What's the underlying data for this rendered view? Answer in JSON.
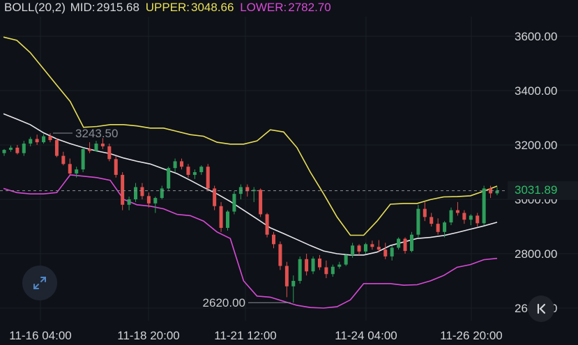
{
  "legend": {
    "name": "BOLL(20,2)",
    "mid_label": "MID:",
    "mid_value": "2915.68",
    "upper_label": "UPPER:",
    "upper_value": "3048.66",
    "lower_label": "LOWER:",
    "lower_value": "2782.70"
  },
  "current_price": "3031.89",
  "colors": {
    "background": "#0e1117",
    "up": "#2e9e5b",
    "down": "#e2514f",
    "upper": "#e9e059",
    "mid": "#e8e8ee",
    "lower": "#d94ad9",
    "price_text": "#2dbd6a"
  },
  "controls": {
    "expand_icon": "expand-arrows-icon",
    "collapse_icon": "chevron-left-bar-icon"
  },
  "chart_data": {
    "type": "candlestick",
    "y_ticks": [
      "3600.00",
      "3400.00",
      "3200.00",
      "3000.00",
      "2800.00",
      "2600.00"
    ],
    "x_ticks": [
      "11-16 04:00",
      "11-18 20:00",
      "11-21 12:00",
      "11-24 04:00",
      "11-26 20:00"
    ],
    "annotations": {
      "high": "3243.50",
      "low": "2620.00"
    },
    "ylim": [
      2580,
      3660
    ],
    "candles": [
      [
        3170,
        3185,
        3160,
        3182
      ],
      [
        3182,
        3198,
        3175,
        3190
      ],
      [
        3190,
        3200,
        3165,
        3170
      ],
      [
        3170,
        3215,
        3160,
        3205
      ],
      [
        3205,
        3230,
        3195,
        3222
      ],
      [
        3222,
        3238,
        3200,
        3210
      ],
      [
        3210,
        3240,
        3205,
        3232
      ],
      [
        3232,
        3243.5,
        3210,
        3218
      ],
      [
        3218,
        3225,
        3155,
        3160
      ],
      [
        3160,
        3175,
        3125,
        3130
      ],
      [
        3130,
        3150,
        3090,
        3095
      ],
      [
        3095,
        3120,
        3080,
        3110
      ],
      [
        3110,
        3190,
        3100,
        3185
      ],
      [
        3185,
        3210,
        3170,
        3178
      ],
      [
        3178,
        3215,
        3175,
        3205
      ],
      [
        3205,
        3225,
        3185,
        3195
      ],
      [
        3195,
        3205,
        3140,
        3148
      ],
      [
        3148,
        3160,
        3080,
        3090
      ],
      [
        3090,
        3100,
        2960,
        2980
      ],
      [
        2980,
        3010,
        2960,
        3000
      ],
      [
        3000,
        3060,
        2990,
        3045
      ],
      [
        3045,
        3060,
        3000,
        3012
      ],
      [
        3012,
        3025,
        2970,
        2985
      ],
      [
        2985,
        3010,
        2950,
        3005
      ],
      [
        3005,
        3050,
        3000,
        3040
      ],
      [
        3040,
        3120,
        3035,
        3115
      ],
      [
        3115,
        3150,
        3100,
        3140
      ],
      [
        3140,
        3150,
        3110,
        3120
      ],
      [
        3120,
        3130,
        3080,
        3090
      ],
      [
        3090,
        3110,
        3075,
        3100
      ],
      [
        3100,
        3125,
        3090,
        3120
      ],
      [
        3120,
        3130,
        3030,
        3040
      ],
      [
        3040,
        3050,
        2960,
        2975
      ],
      [
        2975,
        2990,
        2880,
        2895
      ],
      [
        2895,
        2960,
        2885,
        2955
      ],
      [
        2955,
        3030,
        2945,
        3020
      ],
      [
        3020,
        3055,
        3000,
        3045
      ],
      [
        3045,
        3055,
        3010,
        3030
      ],
      [
        3030,
        3045,
        2990,
        3035
      ],
      [
        3035,
        3040,
        2935,
        2945
      ],
      [
        2945,
        2950,
        2860,
        2870
      ],
      [
        2870,
        2880,
        2820,
        2835
      ],
      [
        2835,
        2845,
        2740,
        2755
      ],
      [
        2755,
        2770,
        2640,
        2680
      ],
      [
        2680,
        2720,
        2620,
        2700
      ],
      [
        2700,
        2790,
        2690,
        2780
      ],
      [
        2780,
        2800,
        2720,
        2735
      ],
      [
        2735,
        2790,
        2725,
        2782
      ],
      [
        2782,
        2795,
        2740,
        2750
      ],
      [
        2750,
        2775,
        2710,
        2725
      ],
      [
        2725,
        2760,
        2715,
        2752
      ],
      [
        2752,
        2770,
        2745,
        2760
      ],
      [
        2760,
        2800,
        2755,
        2795
      ],
      [
        2795,
        2840,
        2785,
        2830
      ],
      [
        2830,
        2835,
        2795,
        2808
      ],
      [
        2808,
        2840,
        2800,
        2835
      ],
      [
        2835,
        2848,
        2815,
        2825
      ],
      [
        2825,
        2850,
        2805,
        2815
      ],
      [
        2815,
        2840,
        2780,
        2790
      ],
      [
        2790,
        2830,
        2775,
        2822
      ],
      [
        2822,
        2860,
        2815,
        2855
      ],
      [
        2855,
        2860,
        2800,
        2810
      ],
      [
        2810,
        2880,
        2805,
        2870
      ],
      [
        2870,
        2980,
        2860,
        2965
      ],
      [
        2965,
        2990,
        2920,
        2935
      ],
      [
        2935,
        2950,
        2900,
        2910
      ],
      [
        2910,
        2930,
        2870,
        2880
      ],
      [
        2880,
        2920,
        2860,
        2915
      ],
      [
        2915,
        2970,
        2905,
        2960
      ],
      [
        2960,
        2990,
        2940,
        2950
      ],
      [
        2950,
        2960,
        2910,
        2925
      ],
      [
        2925,
        2945,
        2905,
        2940
      ],
      [
        2940,
        2950,
        2900,
        2912
      ],
      [
        2912,
        3050,
        2905,
        3040
      ],
      [
        3040,
        3050,
        3005,
        3022
      ],
      [
        3022,
        3045,
        3015,
        3031.89
      ]
    ],
    "upper": [
      3597,
      3585,
      3540,
      3480,
      3420,
      3360,
      3265,
      3268,
      3275,
      3275,
      3270,
      3262,
      3262,
      3250,
      3238,
      3232,
      3210,
      3203,
      3203,
      3215,
      3256,
      3248,
      3190,
      3100,
      3020,
      2935,
      2868,
      2868,
      2920,
      2982,
      2985,
      2985,
      2999,
      3009,
      3010,
      3013,
      3030,
      3048.66
    ],
    "mid": [
      3315,
      3295,
      3275,
      3245,
      3222,
      3205,
      3190,
      3178,
      3168,
      3152,
      3140,
      3130,
      3112,
      3095,
      3070,
      3044,
      3020,
      2992,
      2960,
      2928,
      2895,
      2874,
      2852,
      2830,
      2810,
      2800,
      2795,
      2795,
      2806,
      2830,
      2843,
      2856,
      2860,
      2867,
      2878,
      2890,
      2902,
      2915.68
    ],
    "lower": [
      3040,
      3025,
      3020,
      3020,
      3025,
      3090,
      3085,
      3080,
      3070,
      3000,
      2980,
      2975,
      2965,
      2945,
      2940,
      2920,
      2880,
      2856,
      2700,
      2644,
      2640,
      2625,
      2610,
      2602,
      2600,
      2605,
      2630,
      2690,
      2690,
      2690,
      2684,
      2686,
      2700,
      2720,
      2750,
      2760,
      2778,
      2782.7
    ]
  }
}
